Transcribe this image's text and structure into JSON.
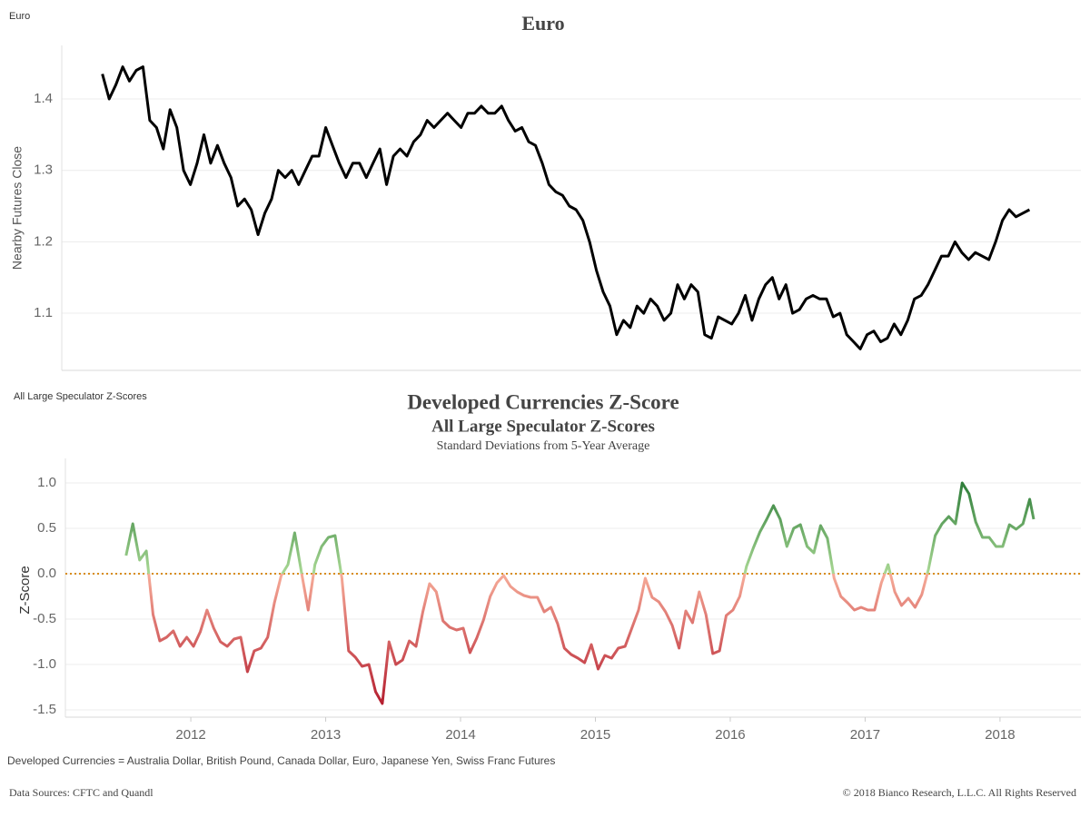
{
  "chart_data": [
    {
      "type": "line",
      "sheet_label": "Euro",
      "title": "Euro",
      "y_label": "Nearby Futures Close",
      "color": "#000000",
      "grid": true,
      "xlim": [
        2011.07,
        2018.6
      ],
      "ylim": [
        1.02,
        1.475
      ],
      "yticks": [
        1.1,
        1.2,
        1.3,
        1.4
      ],
      "x": [
        2011.37,
        2011.42,
        2011.47,
        2011.52,
        2011.57,
        2011.62,
        2011.67,
        2011.72,
        2011.77,
        2011.82,
        2011.87,
        2011.92,
        2011.97,
        2012.02,
        2012.07,
        2012.12,
        2012.17,
        2012.22,
        2012.27,
        2012.32,
        2012.37,
        2012.42,
        2012.47,
        2012.52,
        2012.57,
        2012.62,
        2012.67,
        2012.72,
        2012.77,
        2012.82,
        2012.87,
        2012.92,
        2012.97,
        2013.02,
        2013.07,
        2013.12,
        2013.17,
        2013.22,
        2013.27,
        2013.32,
        2013.37,
        2013.42,
        2013.47,
        2013.52,
        2013.57,
        2013.62,
        2013.67,
        2013.72,
        2013.77,
        2013.82,
        2013.87,
        2013.92,
        2013.97,
        2014.02,
        2014.07,
        2014.12,
        2014.17,
        2014.22,
        2014.27,
        2014.32,
        2014.37,
        2014.42,
        2014.47,
        2014.52,
        2014.57,
        2014.62,
        2014.67,
        2014.72,
        2014.77,
        2014.82,
        2014.87,
        2014.92,
        2014.97,
        2015.02,
        2015.07,
        2015.12,
        2015.17,
        2015.22,
        2015.27,
        2015.32,
        2015.37,
        2015.42,
        2015.47,
        2015.52,
        2015.57,
        2015.62,
        2015.67,
        2015.72,
        2015.77,
        2015.82,
        2015.87,
        2015.92,
        2015.97,
        2016.02,
        2016.07,
        2016.12,
        2016.17,
        2016.22,
        2016.27,
        2016.32,
        2016.37,
        2016.42,
        2016.47,
        2016.52,
        2016.57,
        2016.62,
        2016.67,
        2016.72,
        2016.77,
        2016.82,
        2016.87,
        2016.92,
        2016.97,
        2017.02,
        2017.07,
        2017.12,
        2017.17,
        2017.22,
        2017.27,
        2017.32,
        2017.37,
        2017.42,
        2017.47,
        2017.52,
        2017.57,
        2017.62,
        2017.67,
        2017.72,
        2017.77,
        2017.82,
        2017.87,
        2017.92,
        2017.97,
        2018.02,
        2018.07,
        2018.12,
        2018.17,
        2018.22
      ],
      "values": [
        1.435,
        1.4,
        1.42,
        1.445,
        1.425,
        1.44,
        1.445,
        1.37,
        1.36,
        1.33,
        1.385,
        1.36,
        1.3,
        1.28,
        1.31,
        1.35,
        1.31,
        1.335,
        1.31,
        1.29,
        1.25,
        1.26,
        1.245,
        1.21,
        1.24,
        1.26,
        1.3,
        1.29,
        1.3,
        1.28,
        1.3,
        1.32,
        1.32,
        1.36,
        1.335,
        1.31,
        1.29,
        1.31,
        1.31,
        1.29,
        1.31,
        1.33,
        1.28,
        1.32,
        1.33,
        1.32,
        1.34,
        1.35,
        1.37,
        1.36,
        1.37,
        1.38,
        1.37,
        1.36,
        1.38,
        1.38,
        1.39,
        1.38,
        1.38,
        1.39,
        1.37,
        1.355,
        1.36,
        1.34,
        1.335,
        1.31,
        1.28,
        1.27,
        1.265,
        1.25,
        1.245,
        1.23,
        1.2,
        1.16,
        1.13,
        1.11,
        1.07,
        1.09,
        1.08,
        1.11,
        1.1,
        1.12,
        1.11,
        1.09,
        1.1,
        1.14,
        1.12,
        1.14,
        1.13,
        1.07,
        1.065,
        1.095,
        1.09,
        1.085,
        1.1,
        1.125,
        1.09,
        1.12,
        1.14,
        1.15,
        1.12,
        1.14,
        1.1,
        1.105,
        1.12,
        1.125,
        1.12,
        1.12,
        1.095,
        1.1,
        1.07,
        1.06,
        1.05,
        1.07,
        1.075,
        1.06,
        1.065,
        1.085,
        1.07,
        1.09,
        1.12,
        1.125,
        1.14,
        1.16,
        1.18,
        1.18,
        1.2,
        1.185,
        1.175,
        1.185,
        1.18,
        1.175,
        1.2,
        1.23,
        1.245,
        1.235,
        1.24,
        1.245
      ]
    },
    {
      "type": "line",
      "sheet_label": "All Large Speculator Z-Scores",
      "title": "Developed Currencies Z-Score",
      "subtitle": "All Large Speculator Z-Scores",
      "subtitle_2": "Standard Deviations from 5-Year Average",
      "y_label": "Z-Score",
      "grid": true,
      "xlim": [
        2011.07,
        2018.6
      ],
      "ylim": [
        -1.58,
        1.27
      ],
      "yticks": [
        {
          "value": 1,
          "label": "1.0"
        },
        0.5,
        {
          "value": 0,
          "label": "0.0"
        },
        -0.5,
        {
          "value": -1,
          "label": "-1.0"
        },
        -1.5
      ],
      "xticks": [
        2012,
        2013,
        2014,
        2015,
        2016,
        2017,
        2018
      ],
      "reference_line": {
        "value": 0,
        "color": "#d98c1a"
      },
      "color_scale": [
        {
          "value": -1.5,
          "color": "#b2182b"
        },
        {
          "value": 0,
          "color": "#f6ab98"
        },
        {
          "value": 0,
          "color": "#a9d894"
        },
        {
          "value": 1,
          "color": "#2e7d3a"
        }
      ],
      "x": [
        2011.52,
        2011.57,
        2011.62,
        2011.67,
        2011.72,
        2011.77,
        2011.82,
        2011.87,
        2011.92,
        2011.97,
        2012.02,
        2012.07,
        2012.12,
        2012.17,
        2012.22,
        2012.27,
        2012.32,
        2012.37,
        2012.42,
        2012.47,
        2012.52,
        2012.57,
        2012.62,
        2012.67,
        2012.72,
        2012.77,
        2012.82,
        2012.87,
        2012.92,
        2012.97,
        2013.02,
        2013.07,
        2013.12,
        2013.17,
        2013.22,
        2013.27,
        2013.32,
        2013.37,
        2013.42,
        2013.47,
        2013.52,
        2013.57,
        2013.62,
        2013.67,
        2013.72,
        2013.77,
        2013.82,
        2013.87,
        2013.92,
        2013.97,
        2014.02,
        2014.07,
        2014.12,
        2014.17,
        2014.22,
        2014.27,
        2014.32,
        2014.37,
        2014.42,
        2014.47,
        2014.52,
        2014.57,
        2014.62,
        2014.67,
        2014.72,
        2014.77,
        2014.82,
        2014.87,
        2014.92,
        2014.97,
        2015.02,
        2015.07,
        2015.12,
        2015.17,
        2015.22,
        2015.27,
        2015.32,
        2015.37,
        2015.42,
        2015.47,
        2015.52,
        2015.57,
        2015.62,
        2015.67,
        2015.72,
        2015.77,
        2015.82,
        2015.87,
        2015.92,
        2015.97,
        2016.02,
        2016.07,
        2016.12,
        2016.17,
        2016.22,
        2016.27,
        2016.32,
        2016.37,
        2016.42,
        2016.47,
        2016.52,
        2016.57,
        2016.62,
        2016.67,
        2016.72,
        2016.77,
        2016.82,
        2016.87,
        2016.92,
        2016.97,
        2017.02,
        2017.07,
        2017.12,
        2017.17,
        2017.22,
        2017.27,
        2017.32,
        2017.37,
        2017.42,
        2017.47,
        2017.52,
        2017.57,
        2017.62,
        2017.67,
        2017.72,
        2017.77,
        2017.82,
        2017.87,
        2017.92,
        2017.97,
        2018.02,
        2018.07,
        2018.12,
        2018.17,
        2018.22,
        2018.25
      ],
      "values": [
        0.2,
        0.55,
        0.15,
        0.25,
        -0.45,
        -0.74,
        -0.7,
        -0.63,
        -0.8,
        -0.7,
        -0.8,
        -0.64,
        -0.4,
        -0.6,
        -0.75,
        -0.8,
        -0.72,
        -0.7,
        -1.08,
        -0.85,
        -0.82,
        -0.7,
        -0.32,
        -0.02,
        0.1,
        0.45,
        0.02,
        -0.4,
        0.1,
        0.3,
        0.4,
        0.42,
        -0.05,
        -0.85,
        -0.92,
        -1.02,
        -1.0,
        -1.3,
        -1.43,
        -0.75,
        -1.0,
        -0.95,
        -0.74,
        -0.8,
        -0.42,
        -0.11,
        -0.2,
        -0.52,
        -0.59,
        -0.62,
        -0.6,
        -0.87,
        -0.71,
        -0.51,
        -0.25,
        -0.1,
        -0.02,
        -0.14,
        -0.2,
        -0.24,
        -0.26,
        -0.26,
        -0.42,
        -0.37,
        -0.55,
        -0.82,
        -0.89,
        -0.93,
        -0.98,
        -0.78,
        -1.05,
        -0.9,
        -0.93,
        -0.82,
        -0.8,
        -0.6,
        -0.4,
        -0.05,
        -0.26,
        -0.31,
        -0.42,
        -0.57,
        -0.82,
        -0.41,
        -0.54,
        -0.2,
        -0.45,
        -0.88,
        -0.85,
        -0.46,
        -0.4,
        -0.25,
        0.08,
        0.28,
        0.46,
        0.6,
        0.75,
        0.6,
        0.3,
        0.5,
        0.54,
        0.3,
        0.23,
        0.53,
        0.39,
        -0.05,
        -0.25,
        -0.32,
        -0.4,
        -0.37,
        -0.4,
        -0.4,
        -0.1,
        0.1,
        -0.2,
        -0.35,
        -0.27,
        -0.37,
        -0.23,
        0.05,
        0.42,
        0.55,
        0.63,
        0.55,
        1.0,
        0.88,
        0.57,
        0.4,
        0.4,
        0.3,
        0.3,
        0.54,
        0.49,
        0.55,
        0.82,
        0.6
      ]
    }
  ],
  "footer": {
    "note": "Developed Currencies = Australia Dollar, British Pound, Canada Dollar, Euro, Japanese Yen, Swiss Franc Futures",
    "sources": "Data Sources: CFTC and Quandl",
    "copyright": "© 2018 Bianco Research, L.L.C. All Rights Reserved"
  }
}
